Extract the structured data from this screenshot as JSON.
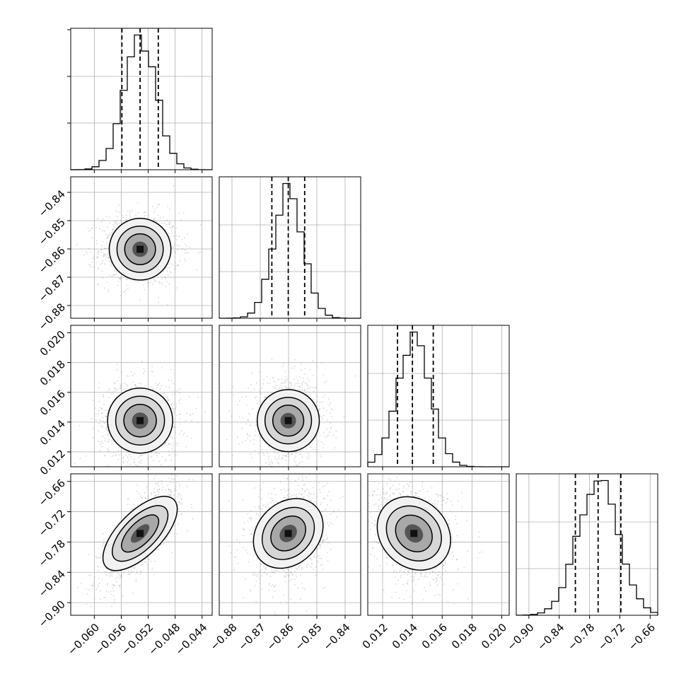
{
  "chart_data": {
    "type": "corner",
    "grid": true,
    "parameters": [
      {
        "range": [
          -0.0635,
          -0.0425
        ],
        "mean": -0.0532,
        "sd": 0.0024,
        "quantiles": [
          -0.0559,
          -0.0532,
          -0.0505
        ],
        "ticks": [
          "-0.060",
          "-0.056",
          "-0.052",
          "-0.048",
          "-0.044"
        ],
        "tick_values": [
          -0.06,
          -0.056,
          -0.052,
          -0.048,
          -0.044
        ]
      },
      {
        "range": [
          -0.8845,
          -0.8345
        ],
        "mean": -0.8601,
        "sd": 0.0052,
        "quantiles": [
          -0.8659,
          -0.8601,
          -0.8543
        ],
        "ticks": [
          "-0.88",
          "-0.87",
          "-0.86",
          "-0.85",
          "-0.84"
        ],
        "tick_values": [
          -0.88,
          -0.87,
          -0.86,
          -0.85,
          -0.84
        ]
      },
      {
        "range": [
          0.011,
          0.0205
        ],
        "mean": 0.0141,
        "sd": 0.0011,
        "quantiles": [
          0.013,
          0.014,
          0.0154
        ],
        "ticks": [
          "0.012",
          "0.014",
          "0.016",
          "0.018",
          "0.020"
        ],
        "tick_values": [
          0.012,
          0.014,
          0.016,
          0.018,
          0.02
        ]
      },
      {
        "range": [
          -0.925,
          -0.645
        ],
        "mean": -0.763,
        "sd": 0.04,
        "quantiles": [
          -0.808,
          -0.763,
          -0.718
        ],
        "ticks": [
          "-0.90",
          "-0.84",
          "-0.78",
          "-0.72",
          "-0.66"
        ],
        "tick_values": [
          -0.9,
          -0.84,
          -0.78,
          -0.72,
          -0.66
        ]
      }
    ],
    "correlations": {
      "1-0": 0.0,
      "2-0": 0.0,
      "2-1": 0.0,
      "3-0": 0.75,
      "3-1": 0.25,
      "3-2": -0.2
    },
    "colors": {
      "histogram": "#000000",
      "scatter": "#8c8c8c",
      "grid": "#b0b0b0",
      "quantile_lines": "#000000"
    }
  }
}
